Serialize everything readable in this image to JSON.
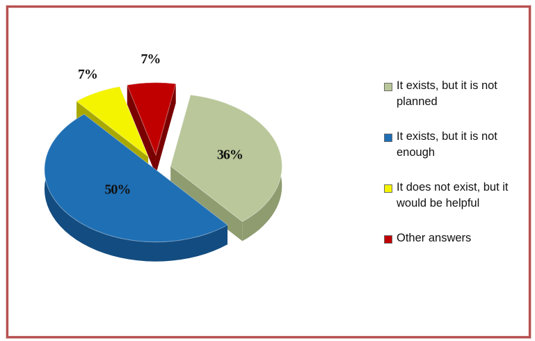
{
  "chart_data": {
    "type": "pie",
    "slices": [
      {
        "label": "It exists, but it is not planned",
        "value": 36,
        "value_label": "36%",
        "color": "#b9c79a",
        "side": "#8e9c70",
        "pull": 0.3
      },
      {
        "label": "It exists, but it is not enough",
        "value": 50,
        "value_label": "50%",
        "color": "#1f6fb4",
        "side": "#134c80",
        "pull": 0.02
      },
      {
        "label": "It does not exist, but it would be helpful",
        "value": 7,
        "value_label": "7%",
        "color": "#f4f400",
        "side": "#a8a800",
        "pull": 0.37
      },
      {
        "label": "Other answers",
        "value": 7,
        "value_label": "7%",
        "color": "#c00000",
        "side": "#7a0000",
        "pull": 0.37
      }
    ],
    "legend_position": "right",
    "style": "3d-exploded"
  }
}
